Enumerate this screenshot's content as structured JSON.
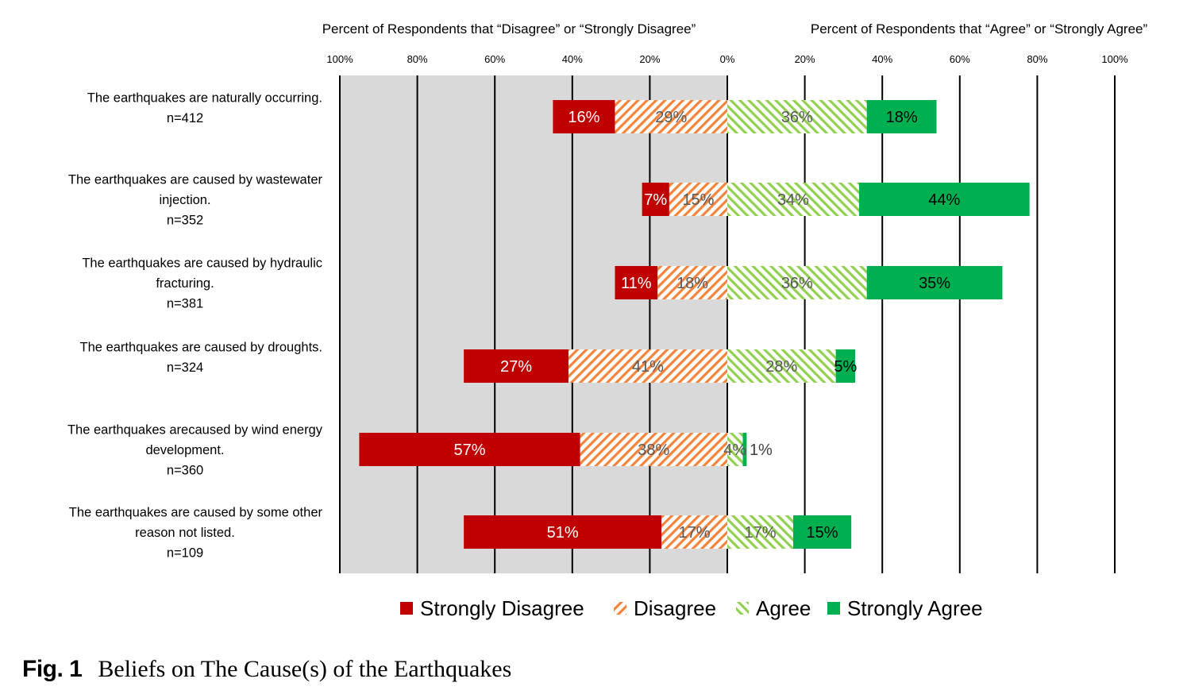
{
  "chart_data": {
    "type": "bar",
    "orientation": "horizontal",
    "stacked": "diverging",
    "headers": {
      "left": "Percent of Respondents that “Disagree” or “Strongly Disagree”",
      "right": "Percent of Respondents that “Agree” or “Strongly Agree”"
    },
    "tick_labels": [
      "100%",
      "80%",
      "60%",
      "40%",
      "20%",
      "0%",
      "20%",
      "40%",
      "60%",
      "80%",
      "100%"
    ],
    "xlim": [
      -100,
      100
    ],
    "categories": [
      {
        "lines": [
          "The earthquakes are naturally occurring."
        ],
        "n": "n=412"
      },
      {
        "lines": [
          "The earthquakes are caused by wastewater",
          "injection."
        ],
        "n": "n=352"
      },
      {
        "lines": [
          "The earthquakes are caused by hydraulic",
          "fracturing."
        ],
        "n": "n=381"
      },
      {
        "lines": [
          "The earthquakes are caused by droughts."
        ],
        "n": "n=324"
      },
      {
        "lines": [
          "The earthquakes arecaused by wind energy",
          "development."
        ],
        "n": "n=360"
      },
      {
        "lines": [
          "The earthquakes are caused by some other",
          "reason not listed."
        ],
        "n": "n=109"
      }
    ],
    "series": [
      {
        "name": "Strongly Disagree",
        "side": "left",
        "color": "#c00000",
        "pattern": "solid",
        "values": [
          16,
          7,
          11,
          27,
          57,
          51
        ],
        "labels": [
          "16%",
          "7%",
          "11%",
          "27%",
          "57%",
          "51%"
        ]
      },
      {
        "name": "Disagree",
        "side": "left",
        "color": "#f4843b",
        "pattern": "hatched",
        "values": [
          29,
          15,
          18,
          41,
          38,
          17
        ],
        "labels": [
          "29%",
          "15%",
          "18%",
          "41%",
          "38%",
          "17%"
        ]
      },
      {
        "name": "Agree",
        "side": "right",
        "color": "#92d050",
        "pattern": "hatched",
        "values": [
          36,
          34,
          36,
          28,
          4,
          17
        ],
        "labels": [
          "36%",
          "34%",
          "36%",
          "28%",
          "4%",
          "17%"
        ]
      },
      {
        "name": "Strongly Agree",
        "side": "right",
        "color": "#00b050",
        "pattern": "solid",
        "values": [
          18,
          44,
          35,
          5,
          1,
          15
        ],
        "labels": [
          "18%",
          "44%",
          "35%",
          "5%",
          "1%",
          "15%"
        ]
      }
    ],
    "legend": {
      "position": "bottom",
      "entries": [
        "Strongly Disagree",
        "Disagree",
        "Agree",
        "Strongly Agree"
      ]
    },
    "gridlines": true,
    "left_background": "#d9d9d9"
  },
  "caption": {
    "label": "Fig. 1",
    "title": "Beliefs on The Cause(s) of the Earthquakes"
  }
}
